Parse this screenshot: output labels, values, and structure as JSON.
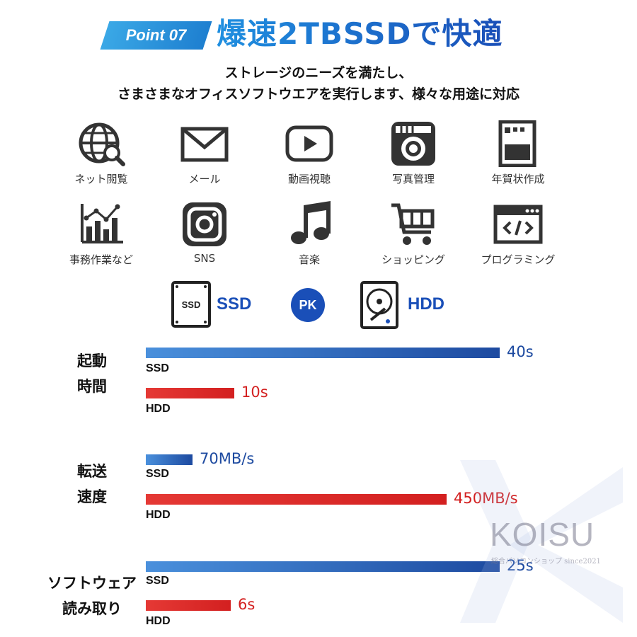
{
  "header": {
    "point_label": "Point 07",
    "headline": "爆速2TBSSDで快適",
    "sub_line1": "ストレージのニーズを満たし、",
    "sub_line2": "さまさまなオフィスソフトウエアを実行します、様々な用途に対応"
  },
  "uses": [
    {
      "label": "ネット閲覧",
      "icon": "globe-search-icon"
    },
    {
      "label": "メール",
      "icon": "envelope-icon"
    },
    {
      "label": "動画視聴",
      "icon": "video-play-icon"
    },
    {
      "label": "写真管理",
      "icon": "camera-icon"
    },
    {
      "label": "年賀状作成",
      "icon": "postcard-icon"
    },
    {
      "label": "事務作業など",
      "icon": "chart-icon"
    },
    {
      "label": "SNS",
      "icon": "instagram-icon"
    },
    {
      "label": "音楽",
      "icon": "music-note-icon"
    },
    {
      "label": "ショッピング",
      "icon": "shopping-cart-icon"
    },
    {
      "label": "プログラミング",
      "icon": "code-window-icon"
    }
  ],
  "legend": {
    "ssd_chip": "SSD",
    "ssd_label": "SSD",
    "pk": "PK",
    "hdd_label": "HDD"
  },
  "comparison": [
    {
      "label_line1": "起動",
      "label_line2": "時間",
      "ssd": {
        "tag": "SSD",
        "value": 40,
        "text": "40s"
      },
      "hdd": {
        "tag": "HDD",
        "value": 10,
        "text": "10s"
      }
    },
    {
      "label_line1": "転送",
      "label_line2": "速度",
      "ssd": {
        "tag": "SSD",
        "value": 70,
        "text": "70MB/s"
      },
      "hdd": {
        "tag": "HDD",
        "value": 450,
        "text": "450MB/s"
      }
    },
    {
      "label_line1": "ソフトウェア",
      "label_line2": "読み取り",
      "ssd": {
        "tag": "SSD",
        "value": 25,
        "text": "25s"
      },
      "hdd": {
        "tag": "HDD",
        "value": 6,
        "text": "6s"
      }
    }
  ],
  "colors": {
    "ssd": "#1d4aa0",
    "hdd": "#d32020",
    "accent": "#1f8fe0"
  },
  "watermark": {
    "brand": "KOISU",
    "sub": "総合パソコンショップ since2021"
  }
}
